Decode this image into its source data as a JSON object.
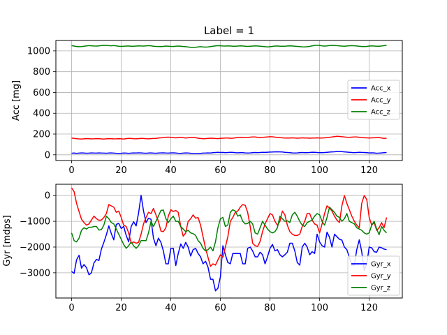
{
  "title": "Label = 1",
  "chart_data": [
    {
      "type": "line",
      "ylabel": "Acc [mg]",
      "xlim": [
        -6.35,
        133.35
      ],
      "ylim": [
        -55,
        1100
      ],
      "xticks": [
        0,
        20,
        40,
        60,
        80,
        100,
        120
      ],
      "yticks": [
        0,
        200,
        400,
        600,
        800,
        1000
      ],
      "grid": true,
      "legend_position": "right",
      "series": [
        {
          "name": "Acc_x",
          "color": "#0000ff",
          "values": [
            15,
            17,
            14,
            16,
            18,
            17,
            15,
            16,
            18,
            17,
            16,
            18,
            17,
            16,
            15,
            17,
            18,
            16,
            15,
            14,
            15,
            17,
            16,
            14,
            16,
            18,
            17,
            19,
            18,
            16,
            15,
            17,
            18,
            16,
            15,
            17,
            18,
            19,
            17,
            16,
            18,
            19,
            17,
            15,
            14,
            16,
            18,
            17,
            15,
            12,
            11,
            12,
            14,
            16,
            17,
            18,
            17,
            20,
            22,
            24,
            22,
            23,
            21,
            22,
            24,
            23,
            20,
            19,
            21,
            20,
            18,
            17,
            18,
            20,
            22,
            21,
            22,
            24,
            23,
            25,
            26,
            27,
            28,
            29,
            28,
            27,
            24,
            22,
            20,
            18,
            17,
            18,
            20,
            22,
            21,
            20,
            22,
            25,
            24,
            22,
            20,
            21,
            22,
            24,
            26,
            28,
            29,
            32,
            31,
            30,
            28,
            26,
            24,
            22,
            21,
            22,
            24,
            23,
            22,
            20,
            18,
            19,
            18,
            15,
            16,
            18,
            20,
            22
          ]
        },
        {
          "name": "Acc_y",
          "color": "#ff0000",
          "values": [
            162,
            158,
            155,
            153,
            152,
            154,
            156,
            155,
            153,
            154,
            156,
            155,
            153,
            152,
            154,
            156,
            155,
            153,
            154,
            155,
            154,
            152,
            156,
            158,
            157,
            155,
            154,
            156,
            158,
            157,
            155,
            154,
            156,
            157,
            158,
            161,
            163,
            166,
            168,
            170,
            167,
            165,
            163,
            166,
            168,
            165,
            162,
            164,
            166,
            168,
            164,
            160,
            157,
            155,
            156,
            158,
            160,
            159,
            157,
            156,
            158,
            160,
            162,
            161,
            159,
            160,
            163,
            166,
            168,
            167,
            165,
            166,
            170,
            172,
            171,
            168,
            166,
            167,
            170,
            172,
            174,
            173,
            170,
            167,
            165,
            163,
            162,
            161,
            162,
            163,
            162,
            160,
            161,
            163,
            162,
            161,
            160,
            161,
            162,
            163,
            162,
            161,
            163,
            166,
            168,
            171,
            175,
            178,
            177,
            174,
            171,
            169,
            168,
            170,
            172,
            171,
            168,
            166,
            164,
            163,
            162,
            163,
            164,
            165,
            166,
            162,
            158,
            160
          ]
        },
        {
          "name": "Acc_z",
          "color": "#008000",
          "values": [
            1050,
            1046,
            1042,
            1040,
            1041,
            1044,
            1048,
            1050,
            1049,
            1047,
            1046,
            1048,
            1051,
            1053,
            1052,
            1050,
            1049,
            1051,
            1048,
            1045,
            1043,
            1044,
            1046,
            1047,
            1045,
            1044,
            1046,
            1048,
            1047,
            1046,
            1048,
            1050,
            1049,
            1045,
            1043,
            1042,
            1041,
            1043,
            1046,
            1045,
            1043,
            1042,
            1044,
            1046,
            1045,
            1042,
            1040,
            1037,
            1035,
            1033,
            1035,
            1038,
            1040,
            1038,
            1036,
            1038,
            1041,
            1045,
            1048,
            1050,
            1049,
            1047,
            1046,
            1048,
            1047,
            1045,
            1044,
            1046,
            1048,
            1047,
            1045,
            1043,
            1044,
            1046,
            1048,
            1047,
            1045,
            1043,
            1040,
            1038,
            1040,
            1043,
            1046,
            1047,
            1045,
            1044,
            1045,
            1047,
            1048,
            1047,
            1045,
            1043,
            1041,
            1039,
            1038,
            1040,
            1043,
            1048,
            1052,
            1055,
            1052,
            1048,
            1046,
            1048,
            1051,
            1053,
            1052,
            1050,
            1048,
            1046,
            1045,
            1047,
            1049,
            1050,
            1049,
            1047,
            1044,
            1042,
            1041,
            1043,
            1046,
            1048,
            1046,
            1044,
            1045,
            1047,
            1050,
            1053
          ]
        }
      ]
    },
    {
      "type": "line",
      "ylabel": "Gyr [mdps]",
      "xlim": [
        -6.35,
        133.35
      ],
      "ylim": [
        -3980,
        440
      ],
      "xticks": [
        0,
        20,
        40,
        60,
        80,
        100,
        120
      ],
      "yticks": [
        -3000,
        -2000,
        -1000,
        0
      ],
      "grid": true,
      "legend_position": "lower right",
      "series": [
        {
          "name": "Gyr_x",
          "color": "#0000ff",
          "values": [
            -2950,
            -3020,
            -2500,
            -2320,
            -2820,
            -2680,
            -2800,
            -3080,
            -3000,
            -2620,
            -2480,
            -2520,
            -2080,
            -1820,
            -1520,
            -1180,
            -1480,
            -1720,
            -1120,
            -1080,
            -1280,
            -1200,
            -1550,
            -1800,
            -1200,
            -1020,
            -1180,
            -680,
            10,
            -600,
            -1050,
            -880,
            -920,
            -1650,
            -1950,
            -1650,
            -1820,
            -2150,
            -2650,
            -2650,
            -2050,
            -2050,
            -2720,
            -2250,
            -1880,
            -2050,
            -1820,
            -2000,
            -2350,
            -2100,
            -2050,
            -2250,
            -2380,
            -2650,
            -2550,
            -2780,
            -3250,
            -3250,
            -3700,
            -3600,
            -3150,
            -1950,
            -2300,
            -2600,
            -2650,
            -2250,
            -2250,
            -2250,
            -2250,
            -2650,
            -2650,
            -2050,
            -2000,
            -2150,
            -2380,
            -2380,
            -2200,
            -2300,
            -2650,
            -2380,
            -2050,
            -1900,
            -2150,
            -2100,
            -2300,
            -2380,
            -2300,
            -2200,
            -1850,
            -1850,
            -2150,
            -2600,
            -2700,
            -2000,
            -1850,
            -2000,
            -2300,
            -2180,
            -2250,
            -1500,
            -1800,
            -1950,
            -2000,
            -1420,
            -1620,
            -2000,
            -1500,
            -1600,
            -1700,
            -1730,
            -2000,
            -2100,
            -2400,
            -2700,
            -2700,
            -2100,
            -1720,
            -2180,
            -2900,
            -2650,
            -2000,
            -2030,
            -2180,
            -2200,
            -2000,
            -2030,
            -2080,
            -2100
          ]
        },
        {
          "name": "Gyr_y",
          "color": "#ff0000",
          "values": [
            300,
            150,
            -300,
            -620,
            -920,
            -1050,
            -1150,
            -1100,
            -950,
            -800,
            -900,
            -960,
            -950,
            -850,
            -700,
            -350,
            -400,
            -450,
            -650,
            -600,
            -850,
            -1150,
            -1200,
            -1450,
            -1850,
            -1800,
            -1850,
            -1820,
            -1500,
            -1100,
            -850,
            -650,
            -700,
            -500,
            -750,
            -1000,
            -1380,
            -1400,
            -1250,
            -800,
            -550,
            -620,
            -580,
            -650,
            -1200,
            -1580,
            -1450,
            -1000,
            -900,
            -750,
            -880,
            -850,
            -1150,
            -1600,
            -2050,
            -2400,
            -2750,
            -2650,
            -2700,
            -2500,
            -2300,
            -2400,
            -2000,
            -1600,
            -1000,
            -850,
            -650,
            -600,
            -450,
            -350,
            -380,
            -650,
            -1200,
            -1850,
            -1950,
            -1980,
            -1780,
            -1400,
            -1100,
            -900,
            -700,
            -750,
            -1000,
            -1150,
            -1000,
            -600,
            -750,
            -1150,
            -1400,
            -1500,
            -1550,
            -1550,
            -1500,
            -1200,
            -1000,
            -700,
            -700,
            -950,
            -1100,
            -1150,
            -1450,
            -1100,
            -700,
            -400,
            -480,
            -600,
            -800,
            -950,
            -1050,
            -400,
            0,
            -300,
            -550,
            -800,
            -1000,
            -1150,
            -1250,
            -300,
            0,
            -150,
            -850,
            -1150,
            -1050,
            -1350,
            -1250,
            -1050,
            -1250,
            -850
          ]
        },
        {
          "name": "Gyr_z",
          "color": "#008000",
          "values": [
            -1450,
            -1750,
            -1800,
            -1650,
            -1350,
            -1250,
            -1300,
            -1230,
            -1230,
            -1200,
            -1200,
            -1340,
            -1320,
            -1150,
            -800,
            -900,
            -1050,
            -1100,
            -1300,
            -1500,
            -1700,
            -1900,
            -2050,
            -1950,
            -1800,
            -1950,
            -2050,
            -1950,
            -1750,
            -1750,
            -1750,
            -1450,
            -1000,
            -1200,
            -1000,
            -800,
            -580,
            -560,
            -900,
            -1050,
            -900,
            -800,
            -1000,
            -1000,
            -1200,
            -1300,
            -1400,
            -1350,
            -1450,
            -1480,
            -1550,
            -1750,
            -1850,
            -2050,
            -2150,
            -2100,
            -2000,
            -2150,
            -1800,
            -1250,
            -900,
            -850,
            -1200,
            -1150,
            -650,
            -550,
            -600,
            -800,
            -750,
            -1000,
            -1100,
            -1080,
            -1000,
            -1100,
            -1450,
            -1500,
            -1250,
            -1000,
            -1150,
            -1300,
            -1400,
            -1450,
            -1400,
            -1250,
            -800,
            -900,
            -1000,
            -980,
            -1050,
            -750,
            -650,
            -800,
            -1000,
            -1150,
            -1200,
            -1050,
            -1000,
            -950,
            -800,
            -700,
            -750,
            -1000,
            -1150,
            -850,
            -450,
            -550,
            -650,
            -800,
            -850,
            -1000,
            -900,
            -700,
            -1000,
            -1050,
            -1100,
            -1250,
            -1300,
            -1350,
            -1450,
            -1500,
            -1450,
            -1150,
            -1000,
            -1300,
            -1520,
            -1200,
            -1350,
            -1450
          ]
        }
      ]
    }
  ]
}
